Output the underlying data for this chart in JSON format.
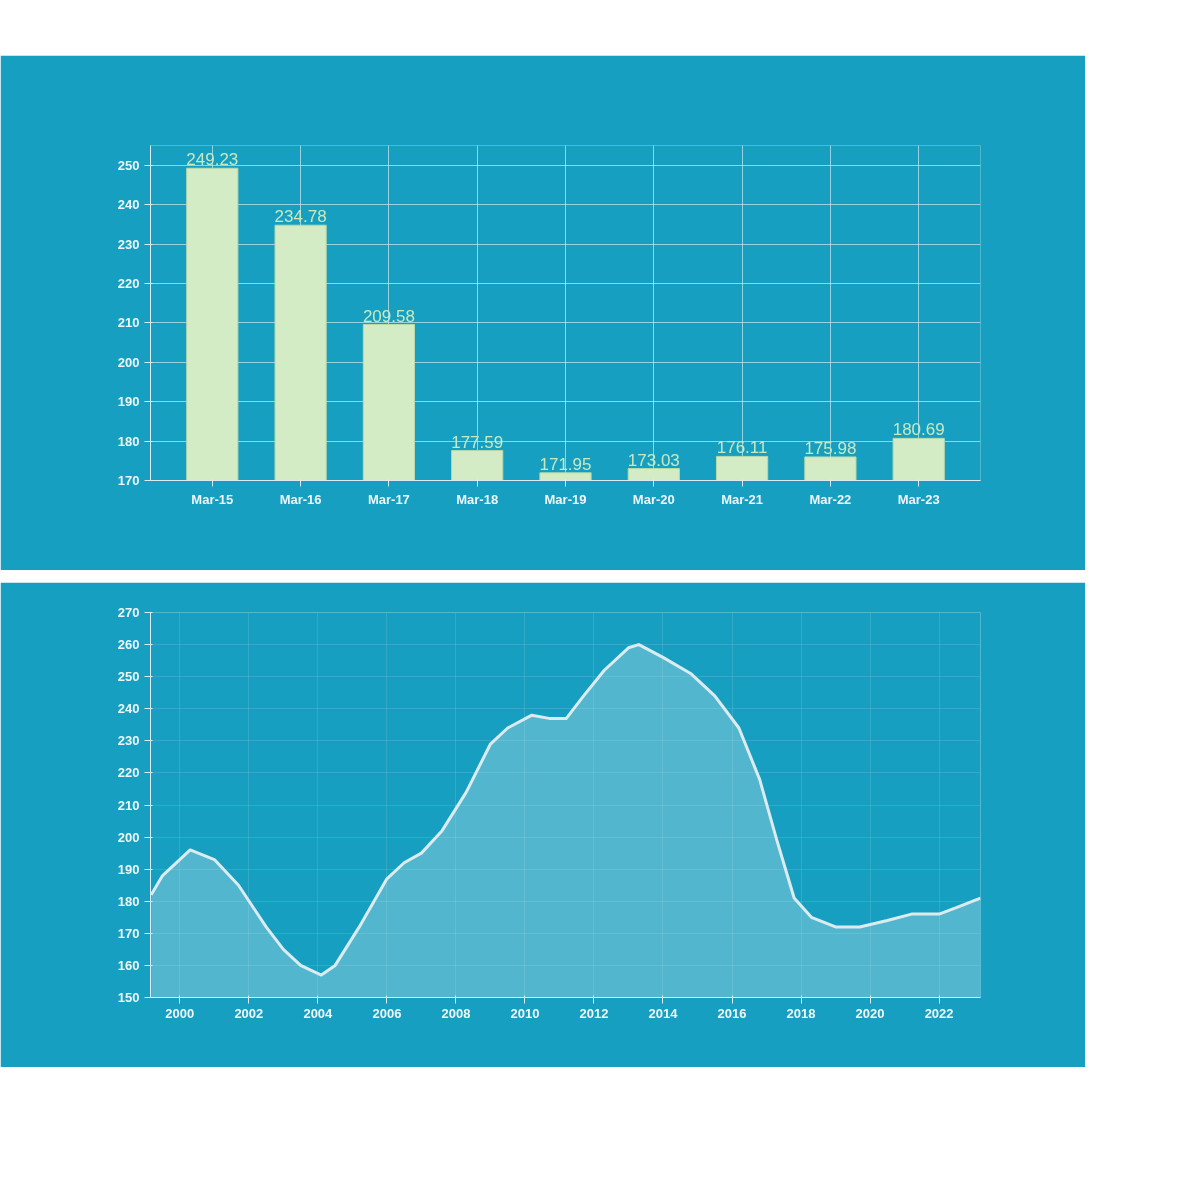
{
  "chart_data": [
    {
      "type": "bar",
      "categories": [
        "Mar-15",
        "Mar-16",
        "Mar-17",
        "Mar-18",
        "Mar-19",
        "Mar-20",
        "Mar-21",
        "Mar-22",
        "Mar-23"
      ],
      "values": [
        249.23,
        234.78,
        209.58,
        177.59,
        171.95,
        173.03,
        176.11,
        175.98,
        180.69
      ],
      "color": "#d4ecc5",
      "ylim": [
        170,
        255
      ],
      "yticks": [
        170,
        180,
        190,
        200,
        210,
        220,
        230,
        240,
        250
      ],
      "grid": true,
      "data_labels": true
    },
    {
      "type": "area",
      "color": "#dcebf0",
      "x": [
        1999.17,
        1999.5,
        2000.3,
        2001,
        2001.7,
        2002.5,
        2003,
        2003.5,
        2004.1,
        2004.5,
        2005.2,
        2006,
        2006.5,
        2007,
        2007.6,
        2008.3,
        2009,
        2009.5,
        2010.2,
        2010.7,
        2011.2,
        2011.7,
        2012.3,
        2013,
        2013.3,
        2014,
        2014.8,
        2015.5,
        2016.2,
        2016.8,
        2017.3,
        2017.8,
        2018.3,
        2019,
        2019.7,
        2020.5,
        2021.2,
        2022,
        2022.5,
        2023.2
      ],
      "values": [
        182,
        188,
        196,
        193,
        185,
        172,
        165,
        160,
        157,
        160,
        172,
        187,
        192,
        195,
        202,
        214,
        229,
        234,
        238,
        237,
        237,
        244,
        252,
        259,
        260,
        256,
        251,
        244,
        234,
        218,
        199,
        181,
        175,
        172,
        172,
        174,
        176,
        176,
        178,
        181
      ],
      "xlim": [
        1999.15,
        2023.2
      ],
      "xticks": [
        2000,
        2002,
        2004,
        2006,
        2008,
        2010,
        2012,
        2014,
        2016,
        2018,
        2020,
        2022
      ],
      "ylim": [
        150,
        270
      ],
      "yticks": [
        150,
        160,
        170,
        180,
        190,
        200,
        210,
        220,
        230,
        240,
        250,
        260,
        270
      ],
      "grid": true
    }
  ]
}
